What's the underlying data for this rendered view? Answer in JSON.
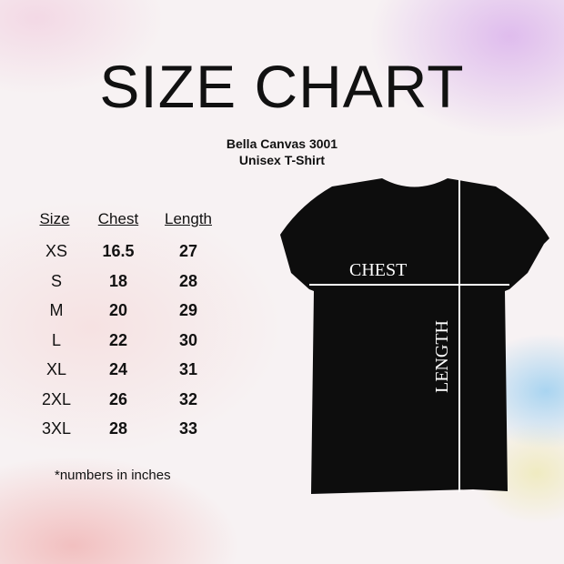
{
  "title": "SIZE CHART",
  "subtitle": "Bella Canvas 3001",
  "subtitle2": "Unisex T-Shirt",
  "table": {
    "headers": [
      "Size",
      "Chest",
      "Length"
    ],
    "rows": [
      [
        "XS",
        "16.5",
        "27"
      ],
      [
        "S",
        "18",
        "28"
      ],
      [
        "M",
        "20",
        "29"
      ],
      [
        "L",
        "22",
        "30"
      ],
      [
        "XL",
        "24",
        "31"
      ],
      [
        "2XL",
        "26",
        "32"
      ],
      [
        "3XL",
        "28",
        "33"
      ]
    ]
  },
  "note": "*numbers in inches",
  "shirt": {
    "chest_label": "CHEST",
    "length_label": "LENGTH",
    "color": "#0d0d0d"
  }
}
